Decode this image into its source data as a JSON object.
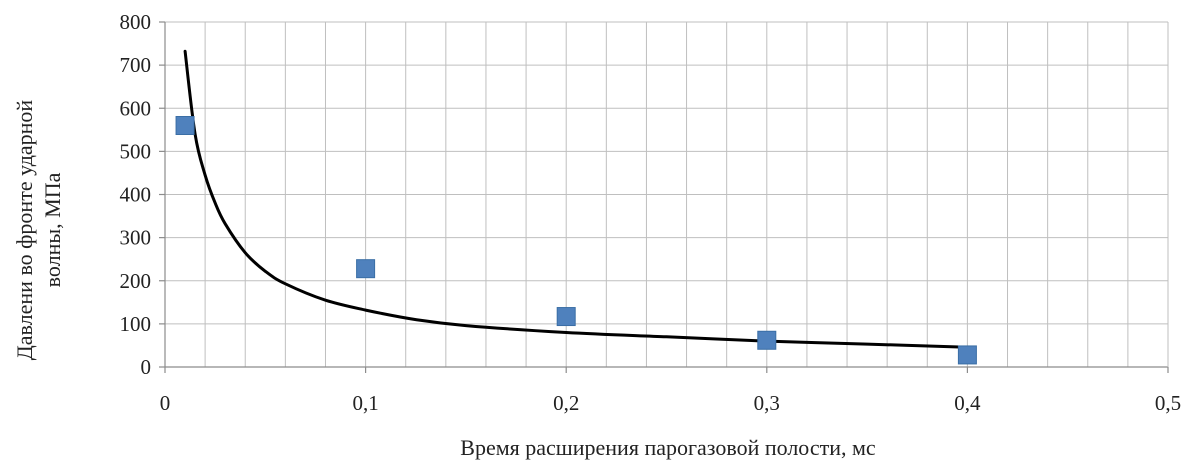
{
  "chart_data": {
    "type": "scatter",
    "xlabel": "Время расширения парогазовой полости, мс",
    "ylabel_lines": [
      "Давлени во фронте ударной",
      "волны, МПа"
    ],
    "xlim": [
      0,
      0.5
    ],
    "ylim": [
      0,
      800
    ],
    "x_ticks": [
      0,
      0.1,
      0.2,
      0.3,
      0.4,
      0.5
    ],
    "x_tick_labels": [
      "0",
      "0,1",
      "0,2",
      "0,3",
      "0,4",
      "0,5"
    ],
    "y_ticks": [
      0,
      100,
      200,
      300,
      400,
      500,
      600,
      700,
      800
    ],
    "y_tick_labels": [
      "0",
      "100",
      "200",
      "300",
      "400",
      "500",
      "600",
      "700",
      "800"
    ],
    "x_minor_step": 0.02,
    "grid": true,
    "series": [
      {
        "kind": "points",
        "marker": "square",
        "color": "#4f81bd",
        "x": [
          0.01,
          0.1,
          0.2,
          0.3,
          0.4
        ],
        "y": [
          560,
          228,
          117,
          62,
          28
        ]
      },
      {
        "kind": "trendline",
        "color": "#000000",
        "x": [
          0.01,
          0.015,
          0.02,
          0.025,
          0.03,
          0.04,
          0.05,
          0.06,
          0.08,
          0.1,
          0.125,
          0.15,
          0.2,
          0.25,
          0.3,
          0.35,
          0.4
        ],
        "y": [
          732,
          540,
          445,
          380,
          332,
          265,
          222,
          193,
          155,
          132,
          110,
          96,
          80,
          70,
          60,
          53,
          46
        ]
      }
    ]
  }
}
